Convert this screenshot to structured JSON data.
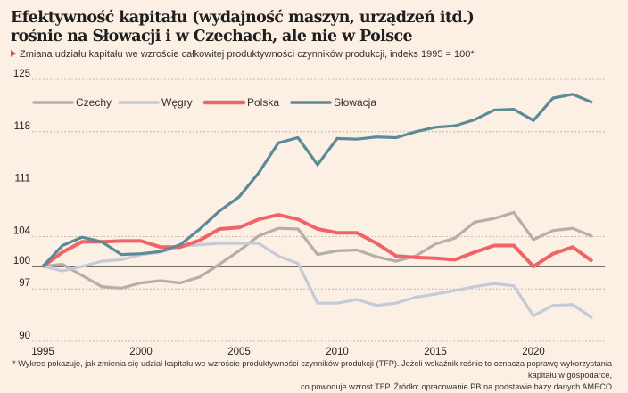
{
  "header": {
    "title_line1": "Efektywność kapitału (wydajność maszyn, urządzeń itd.)",
    "title_line2": "rośnie na Słowacji i w Czechach, ale nie w Polsce",
    "subtitle": "Zmiana udziału kapitału we wzroście całkowitej produktywności czynników produkcji, indeks 1995 = 100*"
  },
  "footnote": {
    "line1": "* Wykres pokazuje, jak zmienia się udział kapitału we wzroście produktywności czynników produkcji (TFP). Jeżeli wskaźnik rośnie to oznacza poprawę wykorzystania kapitału w gospodarce,",
    "line2": "co powoduje wzrost TFP. Źródło: opracowanie PB na podstawie bazy danych AMECO"
  },
  "chart_data": {
    "type": "line",
    "title": "Efektywność kapitału (wydajność maszyn, urządzeń itd.) rośnie na Słowacji i w Czechach, ale nie w Polsce",
    "subtitle": "Zmiana udziału kapitału we wzroście całkowitej produktywności czynników produkcji, indeks 1995 = 100*",
    "xlabel": "",
    "ylabel": "",
    "x": [
      1995,
      1996,
      1997,
      1998,
      1999,
      2000,
      2001,
      2002,
      2003,
      2004,
      2005,
      2006,
      2007,
      2008,
      2009,
      2010,
      2011,
      2012,
      2013,
      2014,
      2015,
      2016,
      2017,
      2018,
      2019,
      2020,
      2021,
      2022,
      2023
    ],
    "xlim": [
      1995,
      2023
    ],
    "ylim": [
      90,
      125
    ],
    "xticks": [
      1995,
      2000,
      2005,
      2010,
      2015,
      2020
    ],
    "yticks": [
      90,
      97,
      100,
      104,
      111,
      118,
      125
    ],
    "baseline": 100,
    "grid": "horizontal dashed",
    "legend_position": "top-left",
    "series": [
      {
        "name": "Czechy",
        "color": "#b3b0a6",
        "values": [
          100,
          100.3,
          98.8,
          97.3,
          97.1,
          97.8,
          98.1,
          97.8,
          98.6,
          100.3,
          102.1,
          104.1,
          105.1,
          105.0,
          101.6,
          102.1,
          102.2,
          101.3,
          100.7,
          101.4,
          103.0,
          103.8,
          105.9,
          106.4,
          107.2,
          103.6,
          104.8,
          105.1,
          104.0
        ]
      },
      {
        "name": "Węgry",
        "color": "#c5cad9",
        "values": [
          100,
          99.4,
          100.0,
          100.7,
          100.9,
          101.6,
          101.9,
          102.7,
          102.9,
          103.1,
          103.1,
          103.1,
          101.4,
          100.4,
          95.1,
          95.1,
          95.6,
          94.8,
          95.1,
          95.9,
          96.3,
          96.8,
          97.3,
          97.7,
          97.4,
          93.4,
          94.8,
          94.9,
          93.1
        ]
      },
      {
        "name": "Polska",
        "color": "#f06467",
        "values": [
          100,
          101.9,
          103.3,
          103.3,
          103.4,
          103.4,
          102.6,
          102.6,
          103.5,
          105.0,
          105.2,
          106.3,
          106.9,
          106.3,
          105.0,
          104.5,
          104.5,
          103.1,
          101.4,
          101.2,
          101.1,
          100.9,
          101.9,
          102.8,
          102.8,
          100.0,
          101.7,
          102.6,
          100.7
        ]
      },
      {
        "name": "Słowacja",
        "color": "#5b8a99",
        "values": [
          100,
          102.8,
          103.9,
          103.3,
          101.6,
          101.7,
          102.0,
          102.9,
          105.0,
          107.4,
          109.3,
          112.5,
          116.5,
          117.2,
          113.6,
          117.1,
          117.0,
          117.3,
          117.2,
          118.0,
          118.6,
          118.8,
          119.6,
          120.9,
          121.0,
          119.5,
          122.5,
          123.0,
          121.9
        ]
      }
    ]
  }
}
